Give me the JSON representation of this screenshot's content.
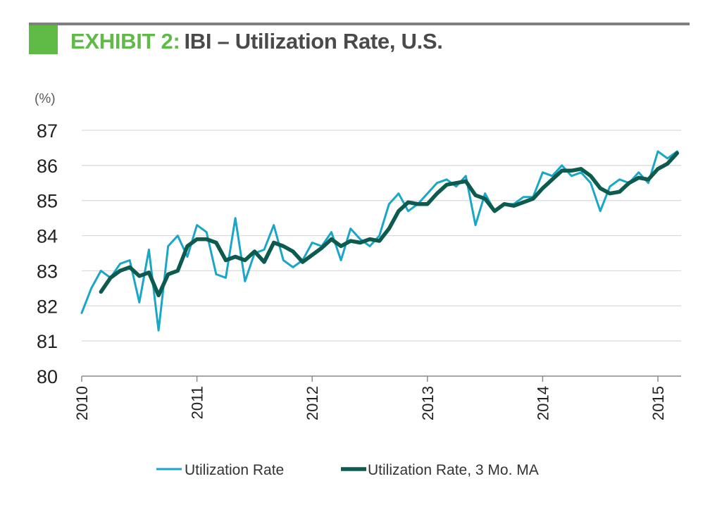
{
  "header": {
    "title_prefix": "EXHIBIT 2:",
    "title_main": "IBI – Utilization Rate, U.S."
  },
  "colors": {
    "accent_green": "#5fba46",
    "series_light": "#1aa6c6",
    "series_dark": "#0d5b4e",
    "rule_gray": "#7f7f7f",
    "grid": "#d9d9d9"
  },
  "chart_data": {
    "type": "line",
    "ylabel": "(%)",
    "ylim": [
      80,
      87
    ],
    "yticks": [
      "80",
      "81",
      "82",
      "83",
      "84",
      "85",
      "86",
      "87"
    ],
    "xticks": [
      "2010",
      "2011",
      "2012",
      "2013",
      "2014",
      "2015"
    ],
    "grid": "horizontal",
    "legend_placement": "bottom-center",
    "series": [
      {
        "name": "Utilization Rate",
        "start": "2010-01",
        "frequency": "monthly",
        "values": [
          81.8,
          82.5,
          83.0,
          82.8,
          83.2,
          83.3,
          82.1,
          83.6,
          81.3,
          83.7,
          84.0,
          83.4,
          84.3,
          84.1,
          82.9,
          82.8,
          84.5,
          82.7,
          83.5,
          83.6,
          84.3,
          83.3,
          83.1,
          83.3,
          83.8,
          83.7,
          84.1,
          83.3,
          84.2,
          83.9,
          83.7,
          84.0,
          84.9,
          85.2,
          84.7,
          84.9,
          85.2,
          85.5,
          85.6,
          85.4,
          85.7,
          84.3,
          85.2,
          84.7,
          84.9,
          84.9,
          85.1,
          85.1,
          85.8,
          85.7,
          86.0,
          85.7,
          85.8,
          85.5,
          84.7,
          85.4,
          85.6,
          85.5,
          85.8,
          85.5,
          86.4,
          86.2,
          86.4
        ]
      },
      {
        "name": "Utilization Rate, 3 Mo. MA",
        "start": "2010-03",
        "frequency": "monthly",
        "values": [
          82.4,
          82.8,
          83.0,
          83.1,
          82.85,
          82.95,
          82.3,
          82.9,
          83.0,
          83.7,
          83.9,
          83.9,
          83.8,
          83.3,
          83.4,
          83.3,
          83.55,
          83.25,
          83.8,
          83.7,
          83.55,
          83.25,
          83.45,
          83.65,
          83.9,
          83.7,
          83.85,
          83.8,
          83.9,
          83.85,
          84.2,
          84.7,
          84.95,
          84.9,
          84.9,
          85.2,
          85.45,
          85.5,
          85.55,
          85.15,
          85.05,
          84.7,
          84.9,
          84.85,
          84.95,
          85.05,
          85.35,
          85.6,
          85.85,
          85.85,
          85.9,
          85.7,
          85.35,
          85.2,
          85.25,
          85.5,
          85.65,
          85.6,
          85.9,
          86.05,
          86.35
        ]
      }
    ]
  }
}
